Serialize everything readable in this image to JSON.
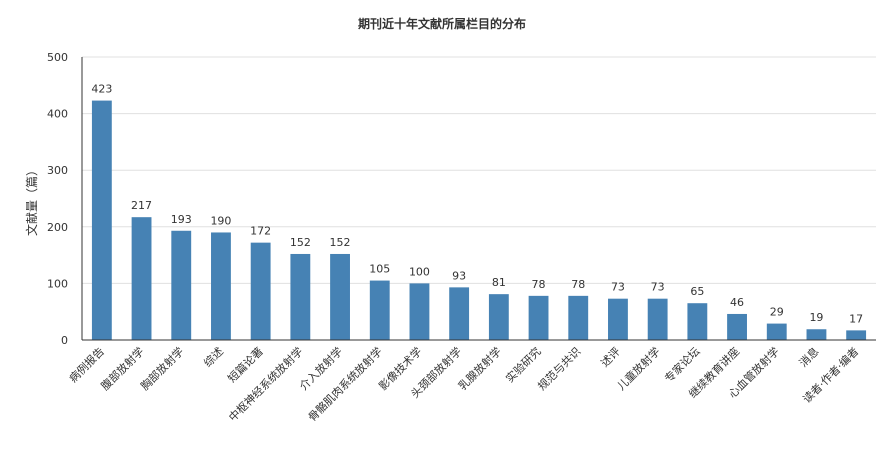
{
  "chart_data": {
    "type": "bar",
    "title": "期刊近十年文献所属栏目的分布",
    "xlabel": "",
    "ylabel": "文献量（篇）",
    "ylim": [
      0,
      500
    ],
    "yticks": [
      0,
      100,
      200,
      300,
      400,
      500
    ],
    "grid": true,
    "bar_color": "#4682B4",
    "categories": [
      "病例报告",
      "腹部放射学",
      "胸部放射学",
      "综述",
      "短篇论著",
      "中枢神经系统放射学",
      "介入放射学",
      "骨骼肌肉系统放射学",
      "影像技术学",
      "头颈部放射学",
      "乳腺放射学",
      "实验研究",
      "规范与共识",
      "述评",
      "儿童放射学",
      "专家论坛",
      "继续教育讲座",
      "心血管放射学",
      "消息",
      "读者·作者·编者"
    ],
    "values": [
      423,
      217,
      193,
      190,
      172,
      152,
      152,
      105,
      100,
      93,
      81,
      78,
      78,
      73,
      73,
      65,
      46,
      29,
      19,
      17
    ]
  }
}
